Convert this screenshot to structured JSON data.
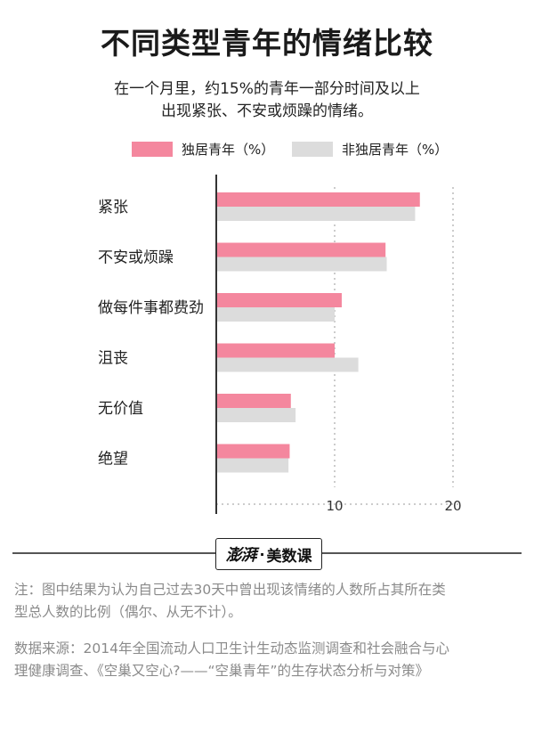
{
  "title": "不同类型青年的情绪比较",
  "subtitle": [
    "在一个月里，约15%的青年一部分时间及以上",
    "出现紧张、不安或烦躁的情绪。"
  ],
  "colors": {
    "series1": "#f4879e",
    "series2": "#dcdcdc",
    "axis": "#333333",
    "grid": "#999999"
  },
  "logo": {
    "seal": "澎湃",
    "dot": "·",
    "text": "美数课"
  },
  "notes": [
    [
      "注：图中结果为认为自己过去30天中曾出现该情绪的人数所占其所在类",
      "型总人数的比例（偶尔、从无不计）。"
    ],
    [
      "数据来源：2014年全国流动人口卫生计生动态监测调查和社会融合与心",
      "理健康调查、《空巢又空心?——“空巢青年”的生存状态分析与对策》"
    ]
  ],
  "chart_data": {
    "type": "bar",
    "orientation": "horizontal",
    "categories": [
      "紧张",
      "不安或烦躁",
      "做每件事都费劲",
      "沮丧",
      "无价值",
      "绝望"
    ],
    "series": [
      {
        "name": "独居青年（%）",
        "values": [
          17.2,
          14.3,
          10.6,
          10.0,
          6.3,
          6.2
        ]
      },
      {
        "name": "非独居青年（%）",
        "values": [
          16.8,
          14.4,
          10.0,
          12.0,
          6.7,
          6.1
        ]
      }
    ],
    "xticks": [
      10,
      20
    ],
    "xlim": [
      0,
      20
    ],
    "grid": true,
    "legend_position": "top"
  }
}
